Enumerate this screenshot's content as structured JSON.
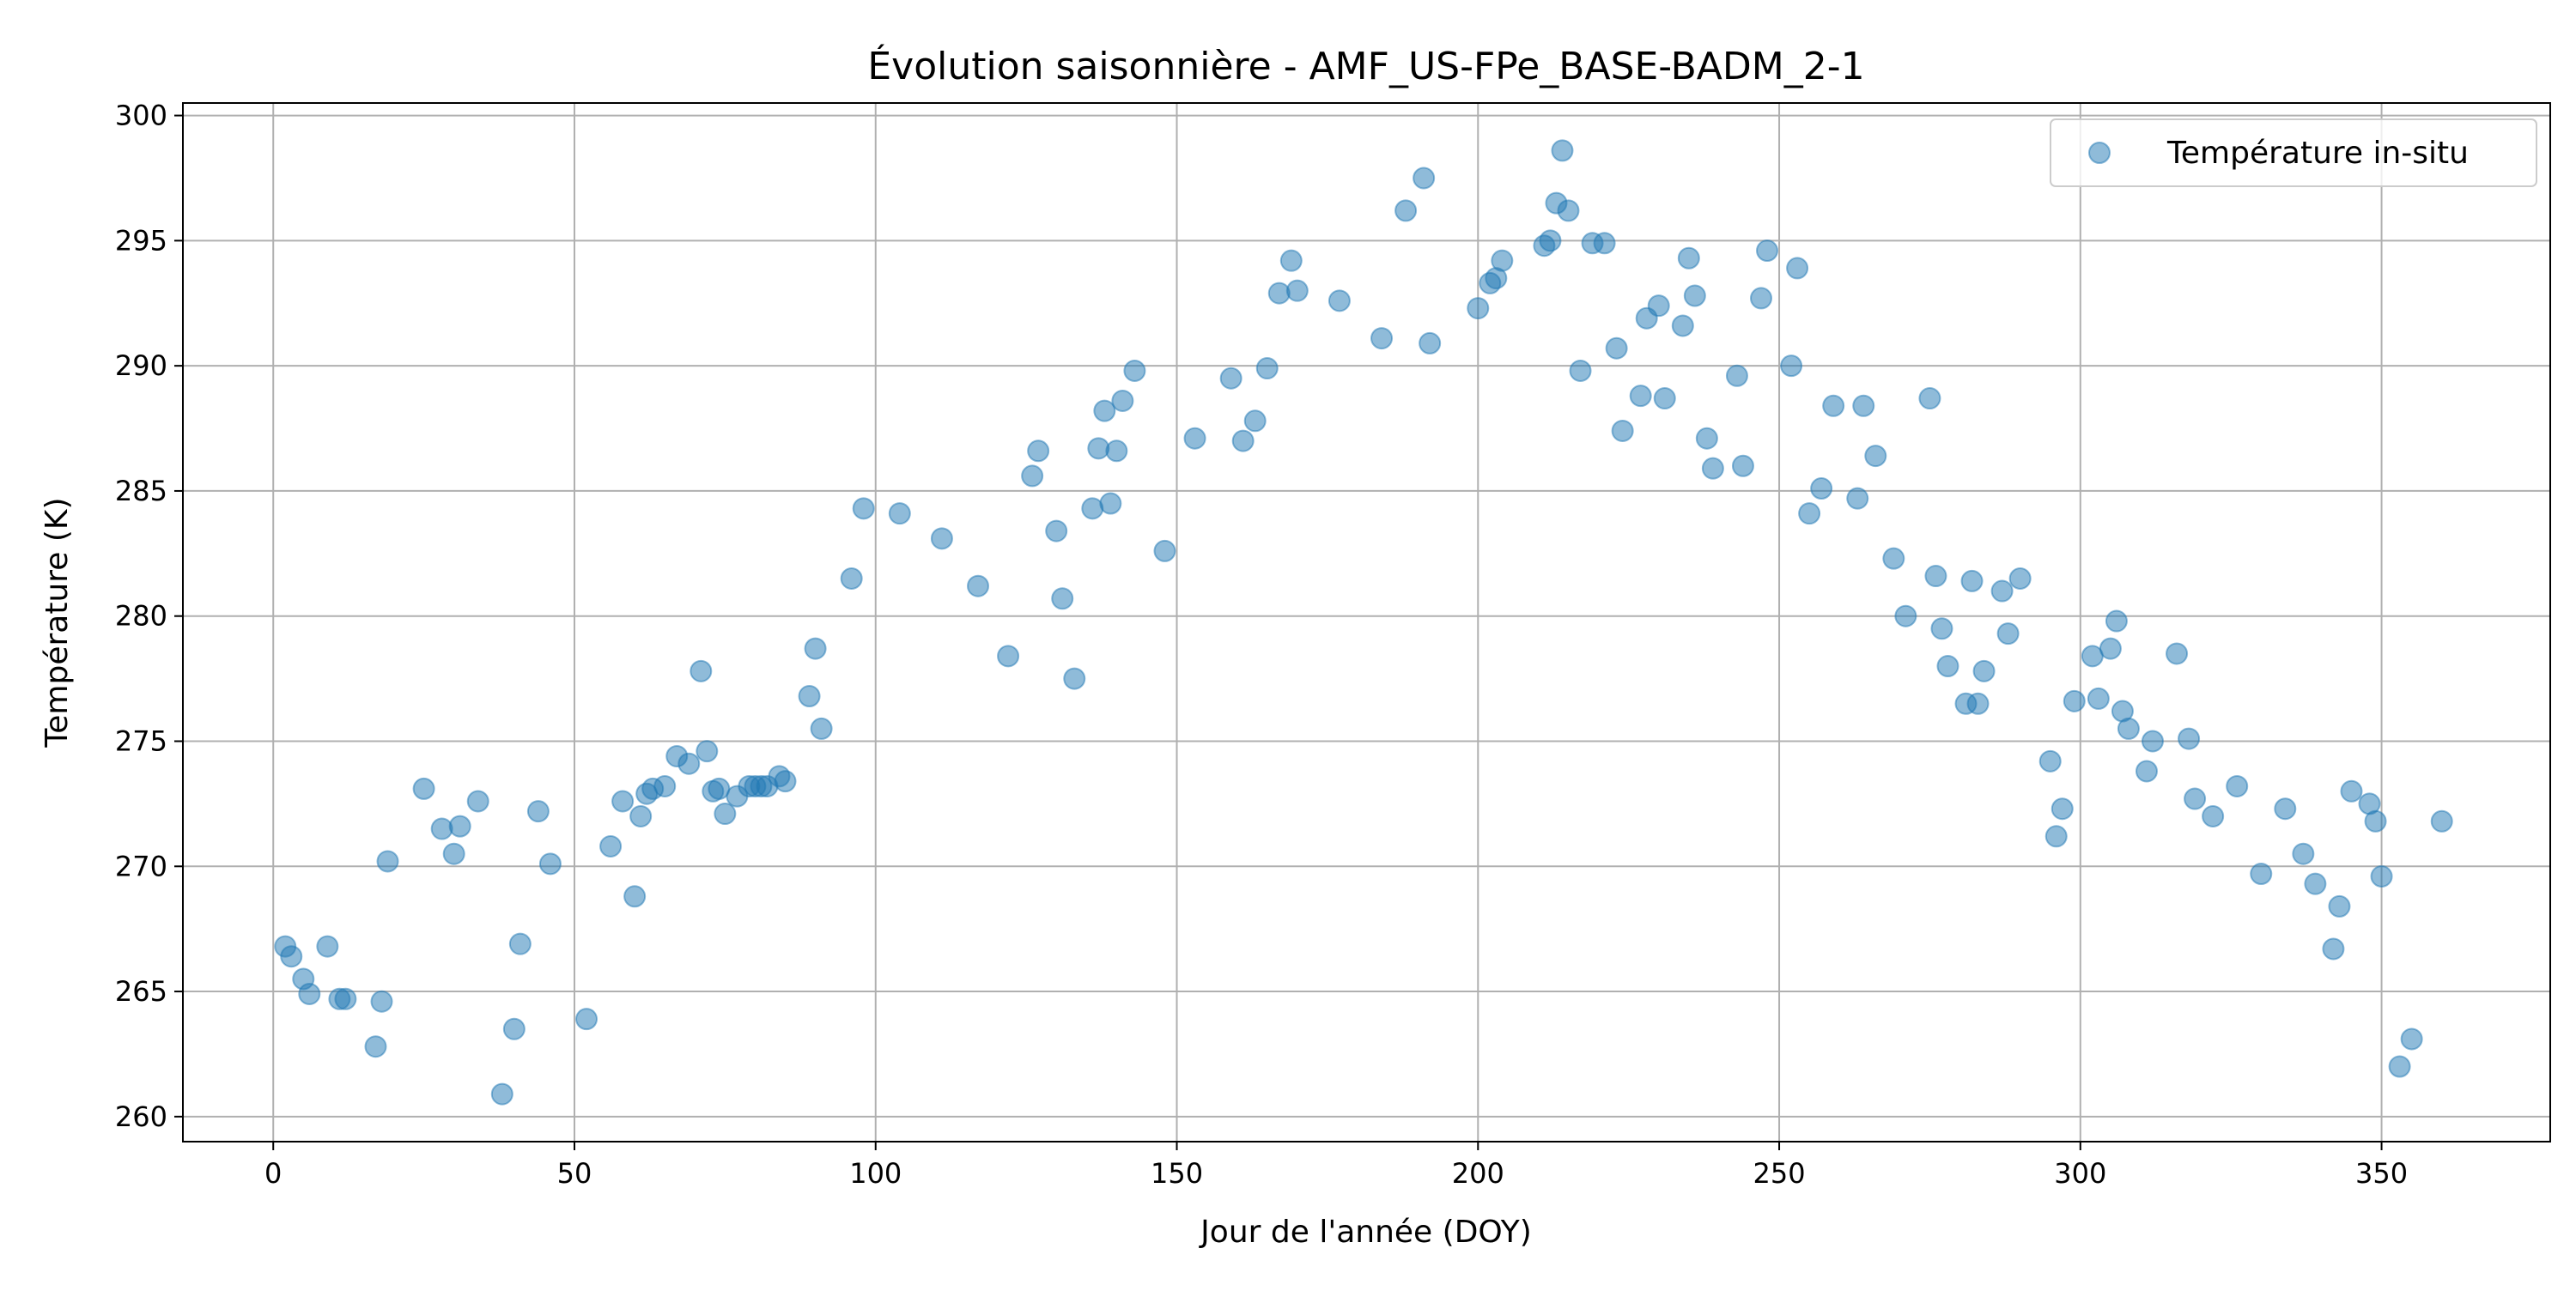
{
  "chart_data": {
    "type": "scatter",
    "title": "Évolution saisonnière - AMF_US-FPe_BASE-BADM_2-1",
    "xlabel": "Jour de l'année (DOY)",
    "ylabel": "Température (K)",
    "xlim": [
      -15,
      378
    ],
    "ylim": [
      259,
      300.5
    ],
    "xticks": [
      0,
      50,
      100,
      150,
      200,
      250,
      300,
      350
    ],
    "yticks": [
      260,
      265,
      270,
      275,
      280,
      285,
      290,
      295,
      300
    ],
    "grid": true,
    "legend_position": "upper right",
    "series": [
      {
        "name": "Température in-situ",
        "color": "#1f77b4",
        "alpha": 0.5,
        "marker": "circle",
        "points": [
          [
            2,
            266.8
          ],
          [
            3,
            266.4
          ],
          [
            5,
            265.5
          ],
          [
            6,
            264.9
          ],
          [
            9,
            266.8
          ],
          [
            11,
            264.7
          ],
          [
            12,
            264.7
          ],
          [
            17,
            262.8
          ],
          [
            18,
            264.6
          ],
          [
            19,
            270.2
          ],
          [
            25,
            273.1
          ],
          [
            28,
            271.5
          ],
          [
            30,
            270.5
          ],
          [
            31,
            271.6
          ],
          [
            34,
            272.6
          ],
          [
            38,
            260.9
          ],
          [
            40,
            263.5
          ],
          [
            41,
            266.9
          ],
          [
            44,
            272.2
          ],
          [
            46,
            270.1
          ],
          [
            52,
            263.9
          ],
          [
            56,
            270.8
          ],
          [
            58,
            272.6
          ],
          [
            60,
            268.8
          ],
          [
            61,
            272.0
          ],
          [
            62,
            272.9
          ],
          [
            63,
            273.1
          ],
          [
            65,
            273.2
          ],
          [
            67,
            274.4
          ],
          [
            69,
            274.1
          ],
          [
            71,
            277.8
          ],
          [
            72,
            274.6
          ],
          [
            73,
            273.0
          ],
          [
            74,
            273.1
          ],
          [
            75,
            272.1
          ],
          [
            77,
            272.8
          ],
          [
            79,
            273.2
          ],
          [
            80,
            273.2
          ],
          [
            81,
            273.2
          ],
          [
            82,
            273.2
          ],
          [
            84,
            273.6
          ],
          [
            85,
            273.4
          ],
          [
            89,
            276.8
          ],
          [
            90,
            278.7
          ],
          [
            91,
            275.5
          ],
          [
            96,
            281.5
          ],
          [
            98,
            284.3
          ],
          [
            104,
            284.1
          ],
          [
            111,
            283.1
          ],
          [
            117,
            281.2
          ],
          [
            122,
            278.4
          ],
          [
            126,
            285.6
          ],
          [
            127,
            286.6
          ],
          [
            130,
            283.4
          ],
          [
            131,
            280.7
          ],
          [
            133,
            277.5
          ],
          [
            136,
            284.3
          ],
          [
            137,
            286.7
          ],
          [
            138,
            288.2
          ],
          [
            139,
            284.5
          ],
          [
            140,
            286.6
          ],
          [
            141,
            288.6
          ],
          [
            143,
            289.8
          ],
          [
            148,
            282.6
          ],
          [
            153,
            287.1
          ],
          [
            159,
            289.5
          ],
          [
            161,
            287.0
          ],
          [
            163,
            287.8
          ],
          [
            165,
            289.9
          ],
          [
            167,
            292.9
          ],
          [
            169,
            294.2
          ],
          [
            170,
            293.0
          ],
          [
            177,
            292.6
          ],
          [
            184,
            291.1
          ],
          [
            188,
            296.2
          ],
          [
            191,
            297.5
          ],
          [
            192,
            290.9
          ],
          [
            200,
            292.3
          ],
          [
            202,
            293.3
          ],
          [
            203,
            293.5
          ],
          [
            204,
            294.2
          ],
          [
            211,
            294.8
          ],
          [
            212,
            295.0
          ],
          [
            213,
            296.5
          ],
          [
            214,
            298.6
          ],
          [
            215,
            296.2
          ],
          [
            217,
            289.8
          ],
          [
            219,
            294.9
          ],
          [
            221,
            294.9
          ],
          [
            223,
            290.7
          ],
          [
            224,
            287.4
          ],
          [
            227,
            288.8
          ],
          [
            228,
            291.9
          ],
          [
            230,
            292.4
          ],
          [
            231,
            288.7
          ],
          [
            234,
            291.6
          ],
          [
            235,
            294.3
          ],
          [
            236,
            292.8
          ],
          [
            238,
            287.1
          ],
          [
            239,
            285.9
          ],
          [
            243,
            289.6
          ],
          [
            244,
            286.0
          ],
          [
            247,
            292.7
          ],
          [
            248,
            294.6
          ],
          [
            252,
            290.0
          ],
          [
            253,
            293.9
          ],
          [
            255,
            284.1
          ],
          [
            257,
            285.1
          ],
          [
            259,
            288.4
          ],
          [
            263,
            284.7
          ],
          [
            264,
            288.4
          ],
          [
            266,
            286.4
          ],
          [
            269,
            282.3
          ],
          [
            271,
            280.0
          ],
          [
            275,
            288.7
          ],
          [
            276,
            281.6
          ],
          [
            277,
            279.5
          ],
          [
            278,
            278.0
          ],
          [
            281,
            276.5
          ],
          [
            282,
            281.4
          ],
          [
            283,
            276.5
          ],
          [
            284,
            277.8
          ],
          [
            287,
            281.0
          ],
          [
            288,
            279.3
          ],
          [
            290,
            281.5
          ],
          [
            295,
            274.2
          ],
          [
            296,
            271.2
          ],
          [
            297,
            272.3
          ],
          [
            299,
            276.6
          ],
          [
            302,
            278.4
          ],
          [
            303,
            276.7
          ],
          [
            305,
            278.7
          ],
          [
            306,
            279.8
          ],
          [
            307,
            276.2
          ],
          [
            308,
            275.5
          ],
          [
            311,
            273.8
          ],
          [
            312,
            275.0
          ],
          [
            316,
            278.5
          ],
          [
            318,
            275.1
          ],
          [
            319,
            272.7
          ],
          [
            322,
            272.0
          ],
          [
            326,
            273.2
          ],
          [
            330,
            269.7
          ],
          [
            334,
            272.3
          ],
          [
            337,
            270.5
          ],
          [
            339,
            269.3
          ],
          [
            342,
            266.7
          ],
          [
            343,
            268.4
          ],
          [
            345,
            273.0
          ],
          [
            348,
            272.5
          ],
          [
            349,
            271.8
          ],
          [
            350,
            269.6
          ],
          [
            353,
            262.0
          ],
          [
            355,
            263.1
          ],
          [
            360,
            271.8
          ]
        ]
      }
    ]
  }
}
